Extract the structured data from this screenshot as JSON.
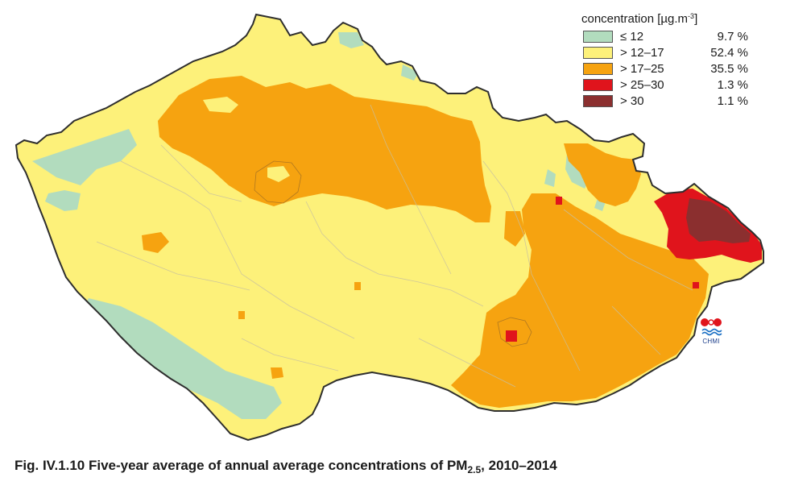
{
  "legend": {
    "title_prefix": "concentration [µg.m",
    "title_exp": "-3",
    "title_suffix": "]",
    "items": [
      {
        "label": "≤ 12",
        "percent": "9.7 %",
        "color": "#b2dcbe"
      },
      {
        "label": "> 12–17",
        "percent": "52.4 %",
        "color": "#fdf17a"
      },
      {
        "label": "> 17–25",
        "percent": "35.5 %",
        "color": "#f6a310"
      },
      {
        "label": "> 25–30",
        "percent": "1.3 %",
        "color": "#e0141c"
      },
      {
        "label": "> 30",
        "percent": "1.1 %",
        "color": "#8b2f2f"
      }
    ]
  },
  "logo": {
    "text": "CHMI"
  },
  "caption": {
    "prefix": "Fig. IV.1.10  Five-year average of annual average concentrations of PM",
    "subscript": "2.5",
    "suffix": ", 2010–2014"
  }
}
